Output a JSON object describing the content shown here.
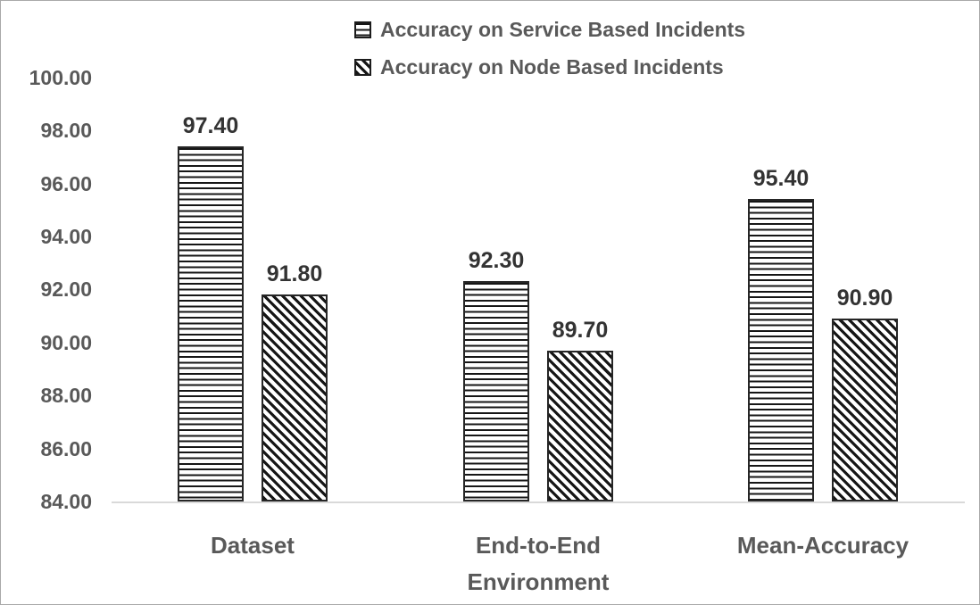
{
  "chart_data": {
    "type": "bar",
    "title": "",
    "xlabel": "",
    "ylabel": "",
    "categories": [
      "Dataset",
      "End-to-End\nEnvironment",
      "Mean-Accuracy"
    ],
    "series": [
      {
        "name": "Accuracy on Service Based Incidents",
        "pattern": "horizontal-lines",
        "values": [
          97.4,
          92.3,
          95.4
        ],
        "data_labels": [
          "97.40",
          "92.30",
          "95.40"
        ]
      },
      {
        "name": "Accuracy on Node Based Incidents",
        "pattern": "diagonal-lines",
        "values": [
          91.8,
          89.7,
          90.9
        ],
        "data_labels": [
          "91.80",
          "89.70",
          "90.90"
        ]
      }
    ],
    "ylim": [
      84,
      100
    ],
    "ytick_step": 2,
    "yticks": [
      {
        "label": "100.00",
        "value": 100
      },
      {
        "label": "98.00",
        "value": 98
      },
      {
        "label": "96.00",
        "value": 96
      },
      {
        "label": "94.00",
        "value": 94
      },
      {
        "label": "92.00",
        "value": 92
      },
      {
        "label": "90.00",
        "value": 90
      },
      {
        "label": "88.00",
        "value": 88
      },
      {
        "label": "86.00",
        "value": 86
      },
      {
        "label": "84.00",
        "value": 84
      }
    ],
    "grid": false,
    "legend_position": "top-center",
    "colors": {
      "axis_text": "#595959",
      "data_label_text": "#333333",
      "axis_line": "#d9d9d9",
      "pattern_ink": "#161616",
      "bar_fill_background": "#ffffff",
      "frame_border": "#a9a9a9"
    }
  }
}
